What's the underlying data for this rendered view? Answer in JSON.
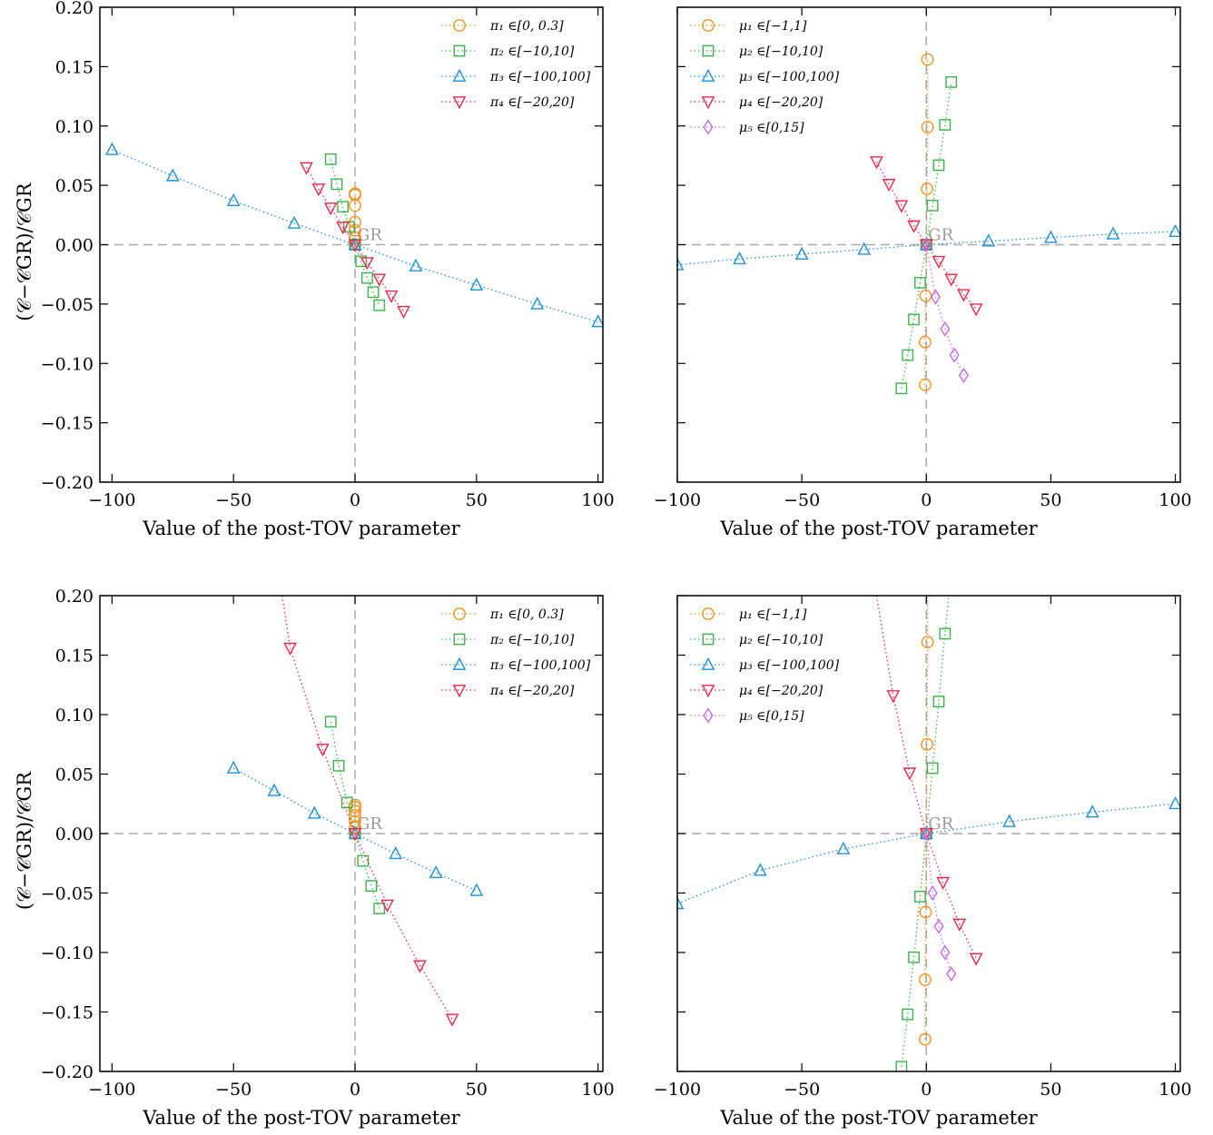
{
  "series_styles": {
    "pi1": {
      "color": "#f5921e",
      "marker": "circle"
    },
    "pi2": {
      "color": "#3cb44b",
      "marker": "square"
    },
    "pi3": {
      "color": "#1f8fd6",
      "marker": "triangle-up"
    },
    "pi4": {
      "color": "#e8284f",
      "marker": "triangle-down"
    },
    "mu1": {
      "color": "#f5921e",
      "marker": "circle"
    },
    "mu2": {
      "color": "#3cb44b",
      "marker": "square"
    },
    "mu3": {
      "color": "#1f8fd6",
      "marker": "triangle-up"
    },
    "mu4": {
      "color": "#e8284f",
      "marker": "triangle-down"
    },
    "mu5": {
      "color": "#c36be8",
      "marker": "diamond"
    }
  },
  "chart_data": [
    {
      "type": "scatter",
      "xlabel": "Value of the post-TOV parameter",
      "ylabel": "(𝒞−𝒞GR)/𝒞GR",
      "xlim": [
        -105,
        102
      ],
      "ylim": [
        -0.2,
        0.2
      ],
      "xticks": [
        "−100",
        "−50",
        "0",
        "50",
        "100"
      ],
      "yticks": [
        "−0.20",
        "−0.15",
        "−0.10",
        "−0.05",
        "0.00",
        "0.05",
        "0.10",
        "0.15",
        "0.20"
      ],
      "annotation": "GR",
      "legend_position": "top-right",
      "series": [
        {
          "key": "pi1",
          "name": "π₁ ∈[0, 0.3]",
          "x": [
            0,
            0,
            0,
            0,
            0,
            0,
            0
          ],
          "y": [
            0.0,
            0.006,
            0.012,
            0.019,
            0.033,
            0.042,
            0.043
          ]
        },
        {
          "key": "pi2",
          "name": "π₂ ∈[−10,10]",
          "x": [
            -10,
            -7.5,
            -5,
            -2.5,
            0,
            2.5,
            5,
            7.5,
            10
          ],
          "y": [
            0.072,
            0.051,
            0.032,
            0.015,
            0.0,
            -0.014,
            -0.028,
            -0.04,
            -0.051
          ]
        },
        {
          "key": "pi3",
          "name": "π₃ ∈[−100,100]",
          "x": [
            -100,
            -75,
            -50,
            -25,
            0,
            25,
            50,
            75,
            100
          ],
          "y": [
            0.08,
            0.058,
            0.037,
            0.018,
            0.0,
            -0.018,
            -0.034,
            -0.05,
            -0.065
          ]
        },
        {
          "key": "pi4",
          "name": "π₄ ∈[−20,20]",
          "x": [
            -20,
            -15,
            -10,
            -5,
            0,
            5,
            10,
            15,
            20
          ],
          "y": [
            0.065,
            0.047,
            0.031,
            0.015,
            0.0,
            -0.015,
            -0.029,
            -0.043,
            -0.056
          ]
        }
      ]
    },
    {
      "type": "scatter",
      "xlabel": "Value of the post-TOV parameter",
      "xlim": [
        -100,
        102
      ],
      "ylim": [
        -0.2,
        0.2
      ],
      "xticks": [
        "−100",
        "−50",
        "0",
        "50",
        "100"
      ],
      "annotation": "GR",
      "legend_position": "top-left",
      "series": [
        {
          "key": "mu1",
          "name": "μ₁ ∈[−1,1]",
          "x": [
            -0.5,
            -0.5,
            -0.3,
            0,
            0.3,
            0.5,
            0.5
          ],
          "y": [
            -0.118,
            -0.082,
            -0.043,
            0.0,
            0.047,
            0.099,
            0.156
          ]
        },
        {
          "key": "mu2",
          "name": "μ₂ ∈[−10,10]",
          "x": [
            -10,
            -7.5,
            -5,
            -2.5,
            0,
            2.5,
            5,
            7.5,
            10
          ],
          "y": [
            -0.121,
            -0.093,
            -0.063,
            -0.032,
            0.0,
            0.033,
            0.067,
            0.101,
            0.137
          ]
        },
        {
          "key": "mu3",
          "name": "μ₃ ∈[−100,100]",
          "x": [
            -100,
            -75,
            -50,
            -25,
            0,
            25,
            50,
            75,
            100
          ],
          "y": [
            -0.017,
            -0.012,
            -0.008,
            -0.004,
            0.0,
            0.003,
            0.006,
            0.009,
            0.011
          ]
        },
        {
          "key": "mu4",
          "name": "μ₄ ∈[−20,20]",
          "x": [
            -20,
            -15,
            -10,
            -5,
            0,
            5,
            10,
            15,
            20
          ],
          "y": [
            0.07,
            0.051,
            0.033,
            0.016,
            0.0,
            -0.014,
            -0.029,
            -0.042,
            -0.054
          ]
        },
        {
          "key": "mu5",
          "name": "μ₅ ∈[0,15]",
          "x": [
            0,
            3.75,
            7.5,
            11.25,
            15
          ],
          "y": [
            0.0,
            -0.044,
            -0.071,
            -0.093,
            -0.11
          ]
        }
      ]
    },
    {
      "type": "scatter",
      "xlabel": "Value of the post-TOV parameter",
      "ylabel": "(𝒞−𝒞GR)/𝒞GR",
      "xlim": [
        -105,
        102
      ],
      "ylim": [
        -0.2,
        0.2
      ],
      "xticks": [
        "−100",
        "−50",
        "0",
        "50",
        "100"
      ],
      "yticks": [
        "−0.20",
        "−0.15",
        "−0.10",
        "−0.05",
        "0.00",
        "0.05",
        "0.10",
        "0.15",
        "0.20"
      ],
      "annotation": "GR",
      "legend_position": "top-right",
      "series": [
        {
          "key": "pi1",
          "name": "π₁ ∈[0, 0.3]",
          "x": [
            0,
            0,
            0,
            0,
            0,
            0,
            0
          ],
          "y": [
            0.0,
            0.005,
            0.01,
            0.015,
            0.019,
            0.022,
            0.024
          ]
        },
        {
          "key": "pi2",
          "name": "π₂ ∈[−10,10]",
          "x": [
            -10,
            -6.7,
            -3.3,
            0,
            3.3,
            6.7,
            10
          ],
          "y": [
            0.094,
            0.057,
            0.026,
            0.0,
            -0.023,
            -0.044,
            -0.063
          ]
        },
        {
          "key": "pi3",
          "name": "π₃ ∈[−100,100]",
          "x": [
            -50,
            -33.3,
            -16.7,
            0,
            16.7,
            33.3,
            50
          ],
          "y": [
            0.055,
            0.036,
            0.017,
            0.0,
            -0.017,
            -0.033,
            -0.048
          ]
        },
        {
          "key": "pi4",
          "name": "π₄ ∈[−20,20]",
          "x": [
            -30,
            -26.7,
            -13.3,
            0,
            13.3,
            26.7,
            40
          ],
          "y": [
            0.2,
            0.156,
            0.071,
            0.0,
            -0.06,
            -0.111,
            -0.156
          ],
          "markers_from": 1
        }
      ]
    },
    {
      "type": "scatter",
      "xlabel": "Value of the post-TOV parameter",
      "xlim": [
        -100,
        102
      ],
      "ylim": [
        -0.2,
        0.2
      ],
      "xticks": [
        "−100",
        "−50",
        "0",
        "50",
        "100"
      ],
      "annotation": "GR",
      "legend_position": "top-left",
      "series": [
        {
          "key": "mu1",
          "name": "μ₁ ∈[−1,1]",
          "x": [
            -0.5,
            -0.5,
            -0.3,
            0,
            0.3,
            0.5,
            0.5
          ],
          "y": [
            -0.173,
            -0.123,
            -0.066,
            0.0,
            0.075,
            0.161,
            0.2
          ],
          "markers_to": 6
        },
        {
          "key": "mu2",
          "name": "μ₂ ∈[−10,10]",
          "x": [
            -10,
            -7.5,
            -5,
            -2.5,
            0,
            2.5,
            5,
            7.5,
            9
          ],
          "y": [
            -0.196,
            -0.152,
            -0.104,
            -0.053,
            0.0,
            0.055,
            0.111,
            0.168,
            0.2
          ],
          "markers_to": 8
        },
        {
          "key": "mu3",
          "name": "μ₃ ∈[−100,100]",
          "x": [
            -100,
            -66.7,
            -33.3,
            0,
            33.3,
            66.7,
            100
          ],
          "y": [
            -0.059,
            -0.031,
            -0.013,
            0.0,
            0.01,
            0.018,
            0.025
          ]
        },
        {
          "key": "mu4",
          "name": "μ₄ ∈[−20,20]",
          "x": [
            -20,
            -13.3,
            -6.7,
            0,
            6.7,
            13.3,
            20
          ],
          "y": [
            0.2,
            0.116,
            0.051,
            0.0,
            -0.041,
            -0.076,
            -0.105
          ],
          "markers_from": 1
        },
        {
          "key": "mu5",
          "name": "μ₅ ∈[0,15]",
          "x": [
            0,
            2.5,
            5,
            7.5,
            10
          ],
          "y": [
            0.0,
            -0.05,
            -0.078,
            -0.1,
            -0.118
          ]
        }
      ]
    }
  ]
}
